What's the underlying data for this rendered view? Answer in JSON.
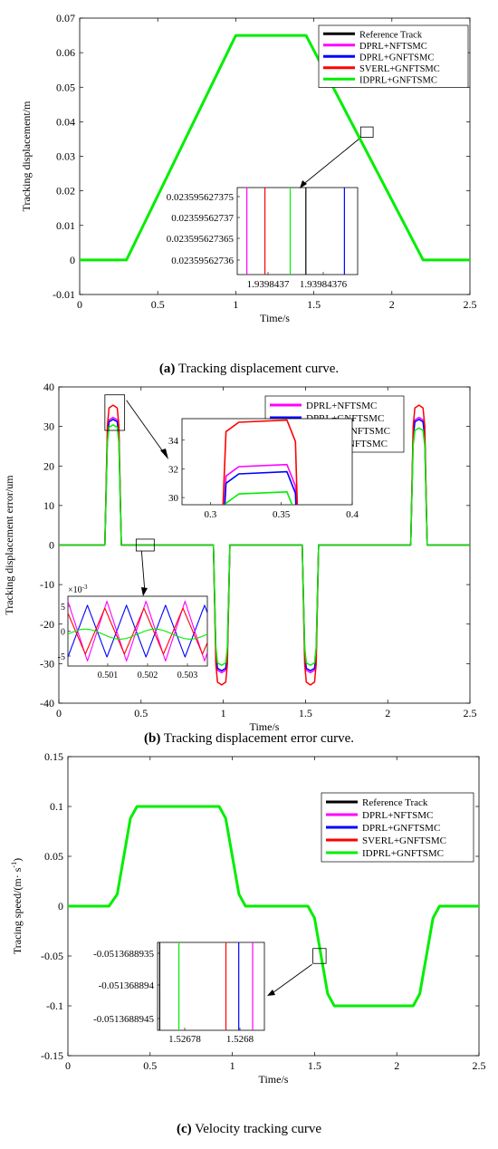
{
  "chart_data": [
    {
      "type": "line",
      "panel": "a",
      "caption_label": "(a)",
      "caption_text": " Tracking displacement curve.",
      "xlabel": "Time/s",
      "ylabel": "Tracking displacement/m",
      "xlim": [
        0,
        2.5
      ],
      "ylim": [
        -0.01,
        0.07
      ],
      "xticks": [
        0,
        0.5,
        1,
        1.5,
        2,
        2.5
      ],
      "yticks": [
        -0.01,
        0,
        0.01,
        0.02,
        0.03,
        0.04,
        0.05,
        0.06,
        0.07
      ],
      "xtick_labels": [
        "0",
        "0.5",
        "1",
        "1.5",
        "2",
        "2.5"
      ],
      "ytick_labels": [
        "-0.01",
        "0",
        "0.01",
        "0.02",
        "0.03",
        "0.04",
        "0.05",
        "0.06",
        "0.07"
      ],
      "legend_position": "top-right",
      "series": [
        {
          "name": "Reference Track",
          "color": "#000000",
          "x": [
            0,
            0.3,
            1,
            1.45,
            2.2,
            2.5
          ],
          "y": [
            0,
            0,
            0.065,
            0.065,
            0,
            0
          ]
        },
        {
          "name": "DPRL+NFTSMC",
          "color": "#ff00ff",
          "x": [
            0,
            0.3,
            1,
            1.45,
            2.2,
            2.5
          ],
          "y": [
            0,
            0,
            0.065,
            0.065,
            0,
            0
          ]
        },
        {
          "name": "DPRL+GNFTSMC",
          "color": "#0000ff",
          "x": [
            0,
            0.3,
            1,
            1.45,
            2.2,
            2.5
          ],
          "y": [
            0,
            0,
            0.065,
            0.065,
            0,
            0
          ]
        },
        {
          "name": "SVERL+GNFTSMC",
          "color": "#ff0000",
          "x": [
            0,
            0.3,
            1,
            1.45,
            2.2,
            2.5
          ],
          "y": [
            0,
            0,
            0.065,
            0.065,
            0,
            0
          ]
        },
        {
          "name": "IDPRL+GNFTSMC",
          "color": "#00ee00",
          "x": [
            0,
            0.3,
            1,
            1.45,
            2.2,
            2.5
          ],
          "y": [
            0,
            0,
            0.065,
            0.065,
            0,
            0
          ]
        }
      ],
      "zoom_box": {
        "x": [
          1.8,
          1.88
        ],
        "y": [
          0.0355,
          0.0385
        ]
      },
      "inset": {
        "yticks": [
          "0.023595627375",
          "0.02359562737",
          "0.023595627365",
          "0.02359562736"
        ],
        "xticks": [
          "1.9398437",
          "1.93984376"
        ],
        "lines": [
          {
            "color": "#ff00ff",
            "pos": 0.08
          },
          {
            "color": "#ff0000",
            "pos": 0.23
          },
          {
            "color": "#00ee00",
            "pos": 0.44
          },
          {
            "color": "#000000",
            "pos": 0.57
          },
          {
            "color": "#0000ff",
            "pos": 0.89
          }
        ]
      }
    },
    {
      "type": "line",
      "panel": "b",
      "caption_label": "(b)",
      "caption_text": " Tracking displacement error curve.",
      "xlabel": "Time/s",
      "ylabel": "Tracking displacement error/um",
      "xlim": [
        0,
        2.5
      ],
      "ylim": [
        -40,
        40
      ],
      "xticks": [
        0,
        0.5,
        1,
        1.5,
        2,
        2.5
      ],
      "yticks": [
        -40,
        -30,
        -20,
        -10,
        0,
        10,
        20,
        30,
        40
      ],
      "xtick_labels": [
        "0",
        "0.5",
        "1",
        "1.5",
        "2",
        "2.5"
      ],
      "ytick_labels": [
        "-40",
        "-30",
        "-20",
        "-10",
        "0",
        "10",
        "20",
        "30",
        "40"
      ],
      "legend_position": "top-right",
      "series": [
        {
          "name": "DPRL+NFTSMC",
          "color": "#ff00ff",
          "peaks": [
            32.3,
            -32.3,
            -32.3,
            32.3
          ]
        },
        {
          "name": "DPRL+GNFTSMC",
          "color": "#0000ff",
          "peaks": [
            31.8,
            -31.8,
            -31.8,
            31.8
          ]
        },
        {
          "name": "SVERL+GNFTSMC",
          "color": "#ff0000",
          "peaks": [
            35.4,
            -35.4,
            -35.4,
            35.4
          ]
        },
        {
          "name": "IDPRL+GNFTSMC",
          "color": "#00ee00",
          "peaks": [
            30.4,
            -30.4,
            -30.4,
            29.6
          ]
        }
      ],
      "pulse_windows": [
        [
          0.28,
          0.38
        ],
        [
          0.94,
          1.04
        ],
        [
          1.48,
          1.58
        ],
        [
          2.14,
          2.24
        ]
      ],
      "zoom_box_1": {
        "x": [
          0.28,
          0.4
        ],
        "y": [
          29,
          38
        ]
      },
      "zoom_box_2": {
        "x": [
          0.47,
          0.58
        ],
        "y": [
          -1.5,
          1.5
        ]
      },
      "inset_1": {
        "xlim": [
          0.28,
          0.4
        ],
        "ylim": [
          29.5,
          35.5
        ],
        "xticks": [
          "0.3",
          "0.35",
          "0.4"
        ],
        "yticks": [
          "30",
          "32",
          "34"
        ]
      },
      "inset_2": {
        "exponent": "×10",
        "exponent_power": "-3",
        "xticks": [
          "0.501",
          "0.502",
          "0.503"
        ],
        "yticks": [
          "5",
          "0",
          "-5"
        ]
      }
    },
    {
      "type": "line",
      "panel": "c",
      "caption_label": "(c)",
      "caption_text": " Velocity tracking curve",
      "xlabel": "Time/s",
      "ylabel": "Tracing speed/(m· s",
      "ylabel_sup": "-1",
      "ylabel_end": ")",
      "xlim": [
        0,
        2.5
      ],
      "ylim": [
        -0.15,
        0.15
      ],
      "xticks": [
        0,
        0.5,
        1,
        1.5,
        2,
        2.5
      ],
      "yticks": [
        -0.15,
        -0.1,
        -0.05,
        0,
        0.05,
        0.1,
        0.15
      ],
      "xtick_labels": [
        "0",
        "0.5",
        "1",
        "1.5",
        "2",
        "2.5"
      ],
      "ytick_labels": [
        "-0.15",
        "-0.1",
        "-0.05",
        "0",
        "0.05",
        "0.1",
        "0.15"
      ],
      "legend_position": "top-right",
      "series": [
        {
          "name": "Reference Track",
          "color": "#000000",
          "x": [
            0,
            0.25,
            0.3,
            0.38,
            0.42,
            0.92,
            0.96,
            1.04,
            1.08,
            1.46,
            1.5,
            1.58,
            1.62,
            2.1,
            2.14,
            2.22,
            2.26,
            2.5
          ],
          "y": [
            0,
            0,
            0.012,
            0.088,
            0.1,
            0.1,
            0.088,
            0.012,
            0,
            0,
            -0.012,
            -0.088,
            -0.1,
            -0.1,
            -0.088,
            -0.012,
            0,
            0
          ]
        },
        {
          "name": "DPRL+NFTSMC",
          "color": "#ff00ff",
          "x": [
            0,
            0.25,
            0.3,
            0.38,
            0.42,
            0.92,
            0.96,
            1.04,
            1.08,
            1.46,
            1.5,
            1.58,
            1.62,
            2.1,
            2.14,
            2.22,
            2.26,
            2.5
          ],
          "y": [
            0,
            0,
            0.012,
            0.088,
            0.1,
            0.1,
            0.088,
            0.012,
            0,
            0,
            -0.012,
            -0.088,
            -0.1,
            -0.1,
            -0.088,
            -0.012,
            0,
            0
          ]
        },
        {
          "name": "DPRL+GNFTSMC",
          "color": "#0000ff",
          "x": [
            0,
            0.25,
            0.3,
            0.38,
            0.42,
            0.92,
            0.96,
            1.04,
            1.08,
            1.46,
            1.5,
            1.58,
            1.62,
            2.1,
            2.14,
            2.22,
            2.26,
            2.5
          ],
          "y": [
            0,
            0,
            0.012,
            0.088,
            0.1,
            0.1,
            0.088,
            0.012,
            0,
            0,
            -0.012,
            -0.088,
            -0.1,
            -0.1,
            -0.088,
            -0.012,
            0,
            0
          ]
        },
        {
          "name": "SVERL+GNFTSMC",
          "color": "#ff0000",
          "x": [
            0,
            0.25,
            0.3,
            0.38,
            0.42,
            0.92,
            0.96,
            1.04,
            1.08,
            1.46,
            1.5,
            1.58,
            1.62,
            2.1,
            2.14,
            2.22,
            2.26,
            2.5
          ],
          "y": [
            0,
            0,
            0.012,
            0.088,
            0.1,
            0.1,
            0.088,
            0.012,
            0,
            0,
            -0.012,
            -0.088,
            -0.1,
            -0.1,
            -0.088,
            -0.012,
            0,
            0
          ]
        },
        {
          "name": "IDPRL+GNFTSMC",
          "color": "#00ee00",
          "x": [
            0,
            0.25,
            0.3,
            0.38,
            0.42,
            0.92,
            0.96,
            1.04,
            1.08,
            1.46,
            1.5,
            1.58,
            1.62,
            2.1,
            2.14,
            2.22,
            2.26,
            2.5
          ],
          "y": [
            0,
            0,
            0.012,
            0.088,
            0.1,
            0.1,
            0.088,
            0.012,
            0,
            0,
            -0.012,
            -0.088,
            -0.1,
            -0.1,
            -0.088,
            -0.012,
            0,
            0
          ]
        }
      ],
      "zoom_box": {
        "x": [
          1.49,
          1.57
        ],
        "y": [
          -0.0575,
          -0.0425
        ]
      },
      "inset": {
        "yticks": [
          "-0.0513688935",
          "-0.051368894",
          "-0.0513688945"
        ],
        "xticks": [
          "1.52678",
          "1.5268"
        ],
        "lines": [
          {
            "color": "#000000",
            "pos": 0.02
          },
          {
            "color": "#00ee00",
            "pos": 0.2
          },
          {
            "color": "#ff0000",
            "pos": 0.64
          },
          {
            "color": "#0000ff",
            "pos": 0.76
          },
          {
            "color": "#ff00ff",
            "pos": 0.89
          }
        ]
      }
    }
  ]
}
